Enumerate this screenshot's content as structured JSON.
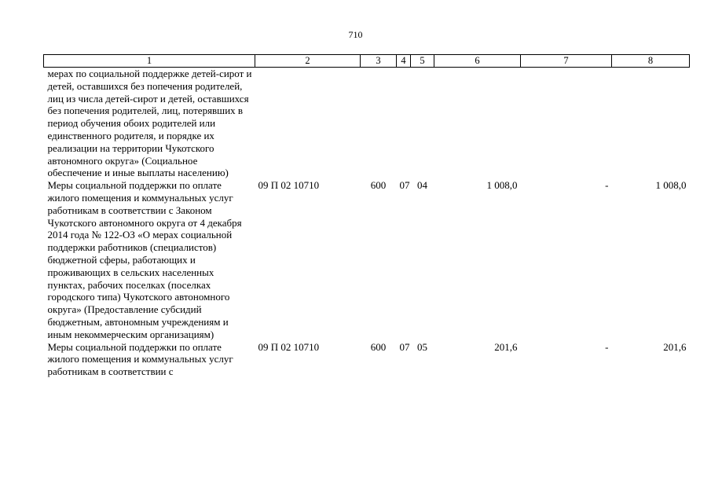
{
  "page": {
    "number": "710"
  },
  "table": {
    "headers": [
      "1",
      "2",
      "3",
      "4",
      "5",
      "6",
      "7",
      "8"
    ],
    "rows": [
      {
        "description": "мерах по социальной поддержке детей-сирот и детей, оставшихся без попечения родителей, лиц из числа детей-сирот и детей, оставшихся без попечения родителей, лиц, потерявших в период обучения обоих родителей или единственного родителя, и порядке их реализации на территории Чукотского автономного округа» (Социальное обеспечение и иные выплаты населению)",
        "code": "",
        "type": "",
        "section": "",
        "subsection": "",
        "total": "",
        "federal": "",
        "regional": ""
      },
      {
        "description": "Меры социальной поддержки по оплате жилого помещения и коммунальных услуг работникам в соответствии с Законом Чукотского автономного округа от 4 декабря 2014 года № 122-ОЗ «О мерах социальной поддержки работников (специалистов) бюджетной сферы, работающих и проживающих в сельских населенных пунктах, рабочих поселках (поселках городского типа) Чукотского автономного округа» (Предоставление субсидий бюджетным, автономным учреждениям и иным некоммерческим организациям)",
        "code": "09 П 02 10710",
        "type": "600",
        "section": "07",
        "subsection": "04",
        "total": "1 008,0",
        "federal": "-",
        "regional": "1 008,0"
      },
      {
        "description": "Меры социальной поддержки по оплате жилого помещения и коммунальных услуг работникам в соответствии с",
        "code": "09 П 02 10710",
        "type": "600",
        "section": "07",
        "subsection": "05",
        "total": "201,6",
        "federal": "-",
        "regional": "201,6"
      }
    ]
  }
}
